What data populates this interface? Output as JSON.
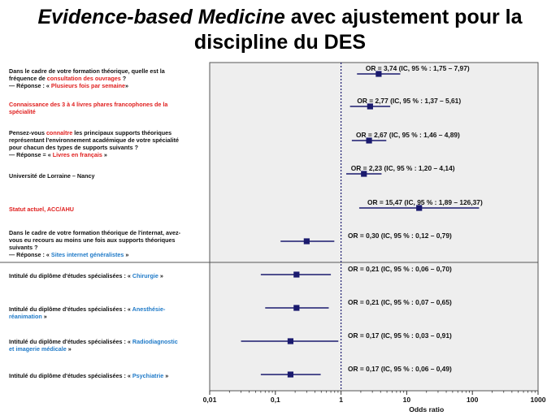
{
  "title": {
    "italic": "Evidence-based Medicine",
    "rest": " avec ajustement pour la",
    "line2": "discipline du DES"
  },
  "labels": [
    [
      {
        "t": "Dans le cadre de votre formation théorique, quelle est la",
        "c": ""
      },
      {
        "br": true
      },
      {
        "t": "fréquence de ",
        "c": ""
      },
      {
        "t": "consultation des ouvrages",
        "c": "red"
      },
      {
        "t": " ?",
        "c": ""
      },
      {
        "br": true
      },
      {
        "t": "— Réponse : « ",
        "c": ""
      },
      {
        "t": "Plusieurs fois par semaine",
        "c": "red"
      },
      {
        "t": "»",
        "c": ""
      }
    ],
    [
      {
        "t": "Connaissance des 3 à 4 livres phares francophones de la",
        "c": "red"
      },
      {
        "br": true
      },
      {
        "t": "spécialité",
        "c": "red"
      }
    ],
    [
      {
        "t": "Pensez-vous ",
        "c": ""
      },
      {
        "t": "connaître",
        "c": "red"
      },
      {
        "t": " les principaux supports théoriques",
        "c": ""
      },
      {
        "br": true
      },
      {
        "t": "représentant l'environnement académique de votre spécialité",
        "c": ""
      },
      {
        "br": true
      },
      {
        "t": "pour chacun des types de supports suivants ?",
        "c": ""
      },
      {
        "br": true
      },
      {
        "t": "— Réponse = « ",
        "c": ""
      },
      {
        "t": "Livres en français",
        "c": "red"
      },
      {
        "t": " »",
        "c": ""
      }
    ],
    [
      {
        "t": "Université de Lorraine – Nancy",
        "c": ""
      }
    ],
    [
      {
        "t": "Statut actuel, ACC/AHU",
        "c": "red"
      }
    ],
    [
      {
        "t": "Dans le cadre de votre formation théorique de l'internat, avez-",
        "c": ""
      },
      {
        "br": true
      },
      {
        "t": "vous eu recours au moins une fois aux supports théoriques",
        "c": ""
      },
      {
        "br": true
      },
      {
        "t": "suivants ?",
        "c": ""
      },
      {
        "br": true
      },
      {
        "t": "— Réponse : « ",
        "c": ""
      },
      {
        "t": "Sites internet généralistes",
        "c": "blue"
      },
      {
        "t": " »",
        "c": ""
      }
    ],
    [
      {
        "t": "Intitulé du diplôme d'études spécialisées : « ",
        "c": ""
      },
      {
        "t": "Chirurgie",
        "c": "blue"
      },
      {
        "t": " »",
        "c": ""
      }
    ],
    [
      {
        "t": "Intitulé du diplôme d'études spécialisées : « ",
        "c": ""
      },
      {
        "t": "Anesthésie-",
        "c": "blue"
      },
      {
        "br": true
      },
      {
        "t": "réanimation",
        "c": "blue"
      },
      {
        "t": " »",
        "c": ""
      }
    ],
    [
      {
        "t": "Intitulé du diplôme d'études spécialisées : « ",
        "c": ""
      },
      {
        "t": "Radiodiagnostic",
        "c": "blue"
      },
      {
        "br": true
      },
      {
        "t": "et imagerie médicale",
        "c": "blue"
      },
      {
        "t": " »",
        "c": ""
      }
    ],
    [
      {
        "t": "Intitulé du diplôme d'études spécialisées : « ",
        "c": ""
      },
      {
        "t": "Psychiatrie",
        "c": "blue"
      },
      {
        "t": " »",
        "c": ""
      }
    ]
  ],
  "chart_data": {
    "type": "forest",
    "xscale": "log10",
    "xlim": [
      0.01,
      1000
    ],
    "xticks": [
      "0,01",
      "0,1",
      "1",
      "10",
      "100",
      "1000"
    ],
    "xtick_values": [
      0.01,
      0.1,
      1,
      10,
      100,
      1000
    ],
    "xlabel": "Odds ratio",
    "reference_line": 1,
    "colors": {
      "marker": "#1a1a6e",
      "ci": "#1a1a6e",
      "refline": "#1a1a6e",
      "panel": "#eeeeee",
      "frame": "#555555"
    },
    "rows": [
      {
        "or": 3.74,
        "lo": 1.75,
        "hi": 7.97,
        "text": "OR = 3,74 (IC, 95 % : 1,75 – 7,97)"
      },
      {
        "or": 2.77,
        "lo": 1.37,
        "hi": 5.61,
        "text": "OR = 2,77 (IC, 95 % : 1,37 – 5,61)"
      },
      {
        "or": 2.67,
        "lo": 1.46,
        "hi": 4.89,
        "text": "OR = 2,67 (IC, 95 % : 1,46 – 4,89)"
      },
      {
        "or": 2.23,
        "lo": 1.2,
        "hi": 4.14,
        "text": "OR = 2,23 (IC, 95 % : 1,20 – 4,14)"
      },
      {
        "or": 15.47,
        "lo": 1.89,
        "hi": 126.37,
        "text": "OR = 15,47 (IC, 95 % : 1,89 – 126,37)"
      },
      {
        "or": 0.3,
        "lo": 0.12,
        "hi": 0.79,
        "text": "OR = 0,30 (IC, 95 % : 0,12 – 0,79)"
      },
      {
        "or": 0.21,
        "lo": 0.06,
        "hi": 0.7,
        "text": "OR = 0,21 (IC, 95 % : 0,06 – 0,70)"
      },
      {
        "or": 0.21,
        "lo": 0.07,
        "hi": 0.65,
        "text": "OR = 0,21 (IC, 95 % : 0,07 – 0,65)"
      },
      {
        "or": 0.17,
        "lo": 0.03,
        "hi": 0.91,
        "text": "OR = 0,17 (IC, 95 % : 0,03 – 0,91)"
      },
      {
        "or": 0.17,
        "lo": 0.06,
        "hi": 0.49,
        "text": "OR = 0,17 (IC, 95 % : 0,06 – 0,49)"
      }
    ]
  }
}
